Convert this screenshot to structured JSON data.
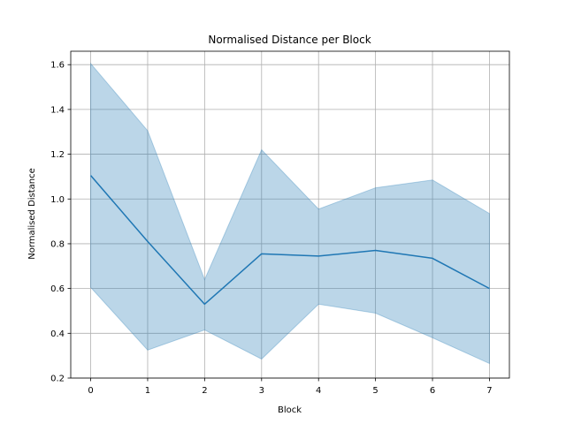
{
  "chart_data": {
    "type": "line",
    "title": "Normalised Distance per Block",
    "xlabel": "Block",
    "ylabel": "Normalised Distance",
    "x": [
      0,
      1,
      2,
      3,
      4,
      5,
      6,
      7
    ],
    "xticks": [
      "0",
      "1",
      "2",
      "3",
      "4",
      "5",
      "6",
      "7"
    ],
    "xlim": [
      -0.35,
      7.35
    ],
    "ylim": [
      0.2,
      1.66
    ],
    "yticks": [
      0.2,
      0.4,
      0.6,
      0.8,
      1.0,
      1.2,
      1.4,
      1.6
    ],
    "ytick_labels": [
      "0.2",
      "0.4",
      "0.6",
      "0.8",
      "1.0",
      "1.2",
      "1.4",
      "1.6"
    ],
    "grid": true,
    "series": [
      {
        "values": [
          1.105,
          0.81,
          0.53,
          0.755,
          0.745,
          0.77,
          0.735,
          0.6
        ],
        "band_upper": [
          1.605,
          1.305,
          0.64,
          1.22,
          0.955,
          1.05,
          1.085,
          0.935
        ],
        "band_lower": [
          0.605,
          0.325,
          0.415,
          0.285,
          0.53,
          0.49,
          0.38,
          0.265
        ],
        "color": "#1f77b4",
        "band_color": "#1f77b4"
      }
    ]
  }
}
